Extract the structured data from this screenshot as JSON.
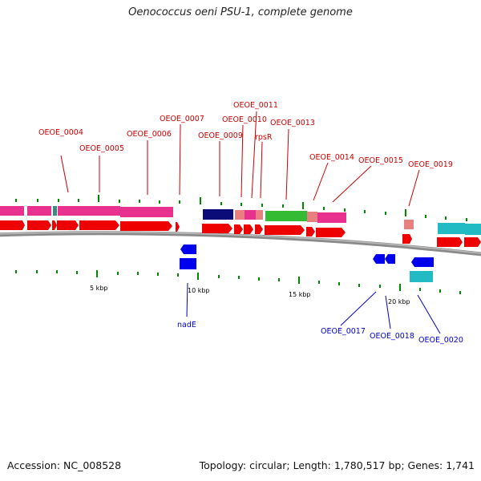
{
  "header": {
    "title": "Oenococcus oeni PSU-1, complete genome"
  },
  "footer": {
    "accession": "Accession: NC_008528",
    "topology": "Topology: circular; Length: 1,780,517 bp; Genes: 1,741"
  },
  "colors": {
    "forward_cds": "#ee0000",
    "reverse_cds": "#0000ee",
    "cog_magenta": "#e8308e",
    "cog_navy": "#0c0c78",
    "cog_salmon": "#e88080",
    "cog_green": "#33bb33",
    "cog_cyan": "#22bbc4",
    "backbone": "#888888",
    "tick": "#008800"
  },
  "chart_data": {
    "type": "genome_map",
    "view_range_bp": [
      0,
      23500
    ],
    "tick_labels": [
      {
        "label": "5 kbp",
        "position_bp": 5000
      },
      {
        "label": "10 kbp",
        "position_bp": 10000
      },
      {
        "label": "15 kbp",
        "position_bp": 15000
      },
      {
        "label": "20 kbp",
        "position_bp": 20000
      }
    ],
    "forward_genes": [
      {
        "name": "OEOE_0004",
        "labeled": true
      },
      {
        "name": "OEOE_0005",
        "labeled": true
      },
      {
        "name": "OEOE_0006",
        "labeled": true
      },
      {
        "name": "OEOE_0007",
        "labeled": true
      },
      {
        "name": "OEOE_0009",
        "labeled": true
      },
      {
        "name": "OEOE_0010",
        "labeled": true
      },
      {
        "name": "OEOE_0011",
        "labeled": true
      },
      {
        "name": "rpsR",
        "labeled": true
      },
      {
        "name": "OEOE_0013",
        "labeled": true
      },
      {
        "name": "OEOE_0014",
        "labeled": true
      },
      {
        "name": "OEOE_0015",
        "labeled": true
      },
      {
        "name": "OEOE_0019",
        "labeled": true
      }
    ],
    "reverse_genes": [
      {
        "name": "nadE",
        "labeled": true
      },
      {
        "name": "OEOE_0017",
        "labeled": true
      },
      {
        "name": "OEOE_0018",
        "labeled": true
      },
      {
        "name": "OEOE_0020",
        "labeled": true
      }
    ]
  }
}
